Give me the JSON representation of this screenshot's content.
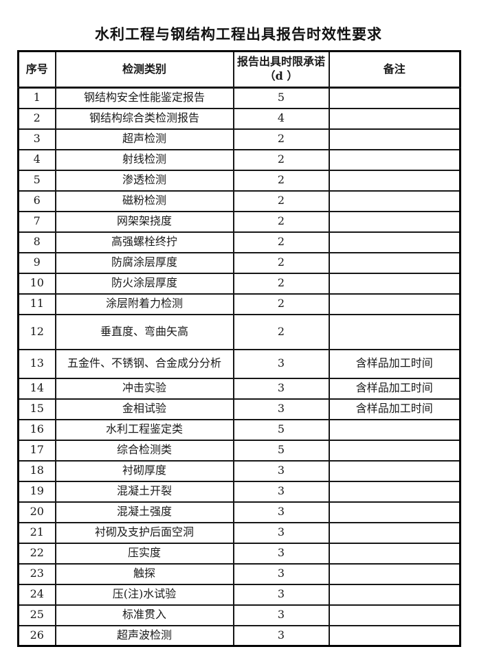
{
  "document": {
    "title": "水利工程与钢结构工程出具报告时效性要求"
  },
  "table": {
    "headers": {
      "no": "序号",
      "category": "检测类别",
      "deadline_line1": "报告出具时限承诺",
      "deadline_line2": "（d ）",
      "remark": "备注"
    },
    "rows": [
      {
        "no": "1",
        "category": "钢结构安全性能鉴定报告",
        "days": "5",
        "remark": ""
      },
      {
        "no": "2",
        "category": "钢结构综合类检测报告",
        "days": "4",
        "remark": ""
      },
      {
        "no": "3",
        "category": "超声检测",
        "days": "2",
        "remark": ""
      },
      {
        "no": "4",
        "category": "射线检测",
        "days": "2",
        "remark": ""
      },
      {
        "no": "5",
        "category": "渗透检测",
        "days": "2",
        "remark": ""
      },
      {
        "no": "6",
        "category": "磁粉检测",
        "days": "2",
        "remark": ""
      },
      {
        "no": "7",
        "category": "网架架挠度",
        "days": "2",
        "remark": ""
      },
      {
        "no": "8",
        "category": "高强螺栓终拧",
        "days": "2",
        "remark": ""
      },
      {
        "no": "9",
        "category": "防腐涂层厚度",
        "days": "2",
        "remark": ""
      },
      {
        "no": "10",
        "category": "防火涂层厚度",
        "days": "2",
        "remark": ""
      },
      {
        "no": "11",
        "category": "涂层附着力检测",
        "days": "2",
        "remark": ""
      },
      {
        "no": "12",
        "category": "垂直度、弯曲矢高",
        "days": "2",
        "remark": ""
      },
      {
        "no": "13",
        "category": "五金件、不锈钢、合金成分分析",
        "days": "3",
        "remark": "含样品加工时间"
      },
      {
        "no": "14",
        "category": "冲击实验",
        "days": "3",
        "remark": "含样品加工时间"
      },
      {
        "no": "15",
        "category": "金相试验",
        "days": "3",
        "remark": "含样品加工时间"
      },
      {
        "no": "16",
        "category": "水利工程鉴定类",
        "days": "5",
        "remark": ""
      },
      {
        "no": "17",
        "category": "综合检测类",
        "days": "5",
        "remark": ""
      },
      {
        "no": "18",
        "category": "衬砌厚度",
        "days": "3",
        "remark": ""
      },
      {
        "no": "19",
        "category": "混凝土开裂",
        "days": "3",
        "remark": ""
      },
      {
        "no": "20",
        "category": "混凝土强度",
        "days": "3",
        "remark": ""
      },
      {
        "no": "21",
        "category": "衬砌及支护后面空洞",
        "days": "3",
        "remark": ""
      },
      {
        "no": "22",
        "category": "压实度",
        "days": "3",
        "remark": ""
      },
      {
        "no": "23",
        "category": "触探",
        "days": "3",
        "remark": ""
      },
      {
        "no": "24",
        "category": "压(注)水试验",
        "days": "3",
        "remark": ""
      },
      {
        "no": "25",
        "category": "标准贯入",
        "days": "3",
        "remark": ""
      },
      {
        "no": "26",
        "category": "超声波检测",
        "days": "3",
        "remark": ""
      }
    ]
  }
}
